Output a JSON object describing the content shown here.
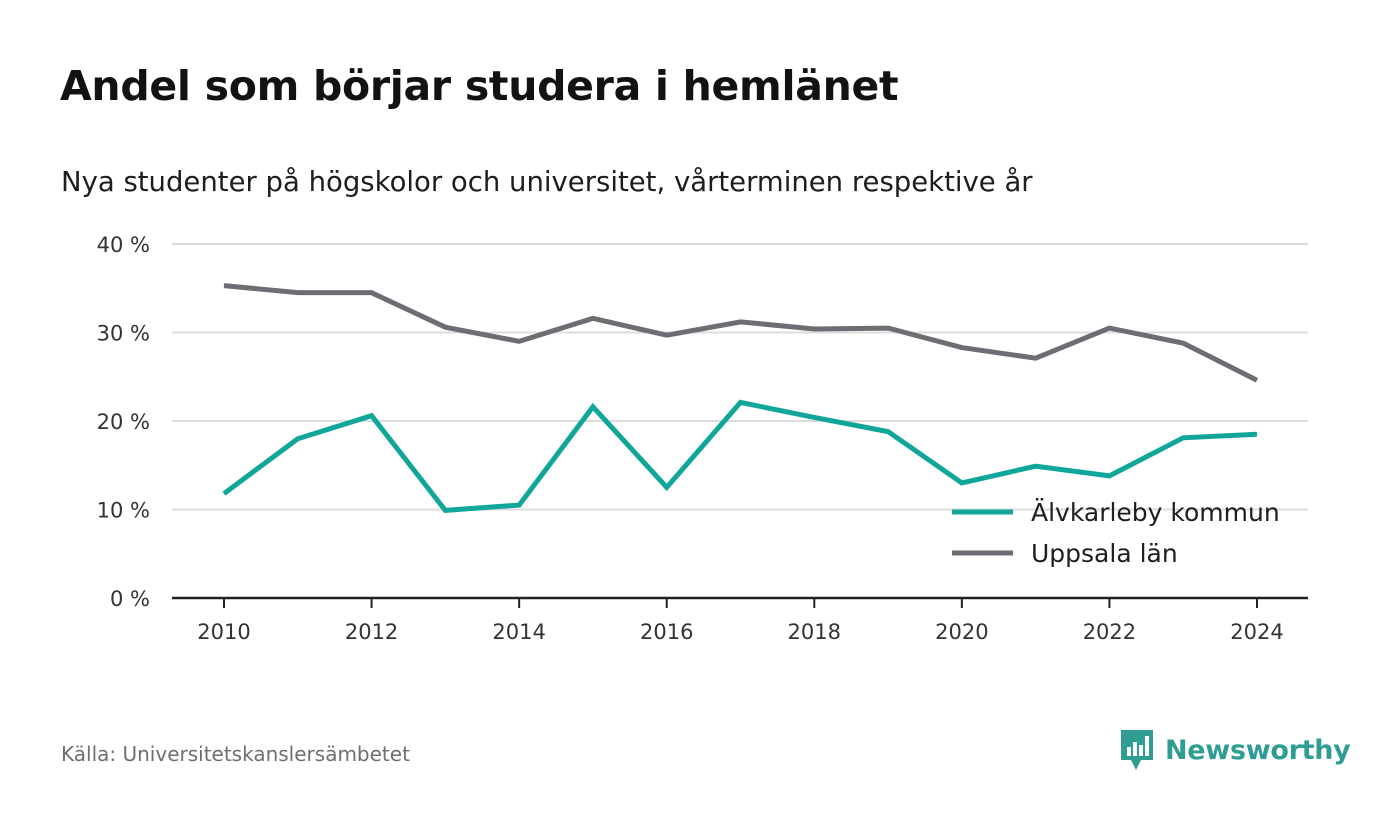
{
  "title": "Andel som börjar studera i hemlänet",
  "subtitle": "Nya studenter på högskolor och universitet, vårterminen respektive år",
  "source": "Källa: Universitetskanslersämbetet",
  "brand": "Newsworthy",
  "colors": {
    "alvkarleby": "#10a79a",
    "uppsala": "#6e6d74",
    "grid": "#dcdcdc",
    "axis": "#222222",
    "brand": "#2f9d94"
  },
  "chart_data": {
    "type": "line",
    "x": [
      2010,
      2011,
      2012,
      2013,
      2014,
      2015,
      2016,
      2017,
      2018,
      2019,
      2020,
      2021,
      2022,
      2023,
      2024
    ],
    "x_ticks": [
      "2010",
      "2012",
      "2014",
      "2016",
      "2018",
      "2020",
      "2022",
      "2024"
    ],
    "y_ticks": [
      "0 %",
      "10 %",
      "20 %",
      "30 %",
      "40 %"
    ],
    "ylim": [
      0,
      40
    ],
    "grid": true,
    "legend_position": "bottom-right",
    "series": [
      {
        "name": "Älvkarleby kommun",
        "color": "#10a79a",
        "values": [
          11.8,
          18.0,
          20.6,
          9.9,
          10.5,
          21.6,
          12.5,
          22.1,
          20.4,
          18.8,
          13.0,
          14.9,
          13.8,
          18.1,
          18.5
        ]
      },
      {
        "name": "Uppsala län",
        "color": "#6e6d74",
        "values": [
          35.3,
          34.5,
          34.5,
          30.6,
          29.0,
          31.6,
          29.7,
          31.2,
          30.4,
          30.5,
          28.3,
          27.1,
          30.5,
          28.8,
          24.6
        ]
      }
    ]
  }
}
